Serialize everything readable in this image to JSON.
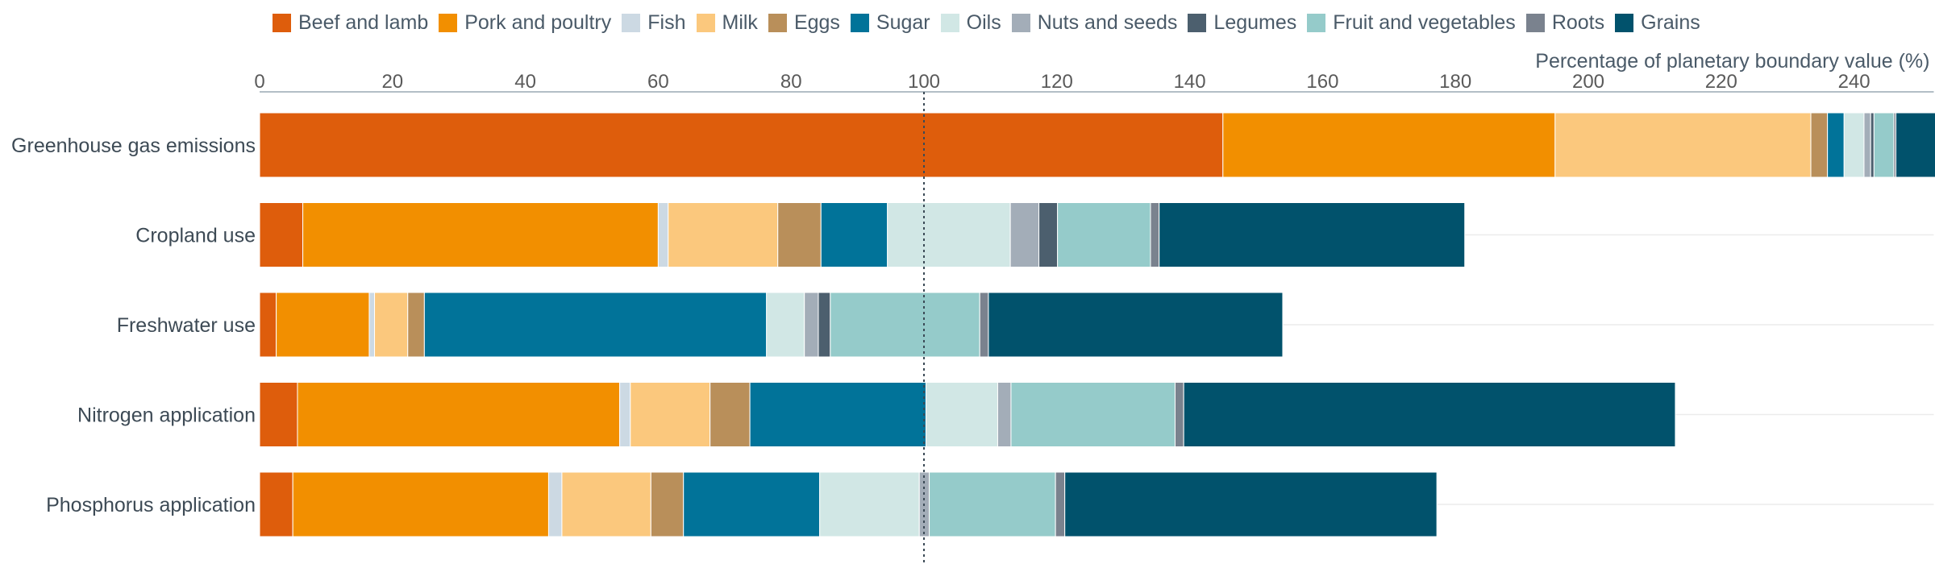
{
  "chart_data": {
    "type": "bar",
    "orientation": "horizontal",
    "stacked": true,
    "xlabel": "Percentage of planetary boundary value (%)",
    "ylabel": "",
    "xlim": [
      0,
      252
    ],
    "xticks": [
      0,
      20,
      40,
      60,
      80,
      100,
      120,
      140,
      160,
      180,
      200,
      220,
      240
    ],
    "reference_line": 100,
    "categories": [
      "Greenhouse gas emissions",
      "Cropland use",
      "Freshwater use",
      "Nitrogen application",
      "Phosphorus application"
    ],
    "legend_position": "top",
    "grid": "horizontal row lines",
    "series": [
      {
        "name": "Beef and lamb",
        "color": "#de5d0c",
        "values": [
          145,
          6.5,
          2.5,
          5.7,
          5
        ]
      },
      {
        "name": "Pork and poultry",
        "color": "#f28f00",
        "values": [
          50,
          53.5,
          14,
          48.5,
          38.5
        ]
      },
      {
        "name": "Fish",
        "color": "#ccd9e3",
        "values": [
          0,
          1.5,
          0.8,
          1.6,
          2
        ]
      },
      {
        "name": "Milk",
        "color": "#fbc87d",
        "values": [
          38.5,
          16.5,
          5,
          12,
          13.4
        ]
      },
      {
        "name": "Eggs",
        "color": "#b98f5a",
        "values": [
          2.5,
          6.5,
          2.5,
          6,
          4.9
        ]
      },
      {
        "name": "Sugar",
        "color": "#017399",
        "values": [
          2.5,
          10,
          51.5,
          26.5,
          20.5
        ]
      },
      {
        "name": "Oils",
        "color": "#d1e7e5",
        "values": [
          3,
          18.5,
          5.7,
          10.8,
          15
        ]
      },
      {
        "name": "Nuts and seeds",
        "color": "#a3adb8",
        "values": [
          1,
          4.3,
          2.1,
          2,
          1.5
        ]
      },
      {
        "name": "Legumes",
        "color": "#4c5f6e",
        "values": [
          0.5,
          2.8,
          1.8,
          0,
          0
        ]
      },
      {
        "name": "Fruit and vegetables",
        "color": "#95cbca",
        "values": [
          3,
          14,
          22.5,
          24.7,
          19
        ]
      },
      {
        "name": "Roots",
        "color": "#7a828e",
        "values": [
          0.3,
          1.3,
          1.3,
          1.3,
          1.4
        ]
      },
      {
        "name": "Grains",
        "color": "#01526c",
        "values": [
          6.5,
          46,
          44.3,
          74,
          56
        ]
      }
    ]
  }
}
